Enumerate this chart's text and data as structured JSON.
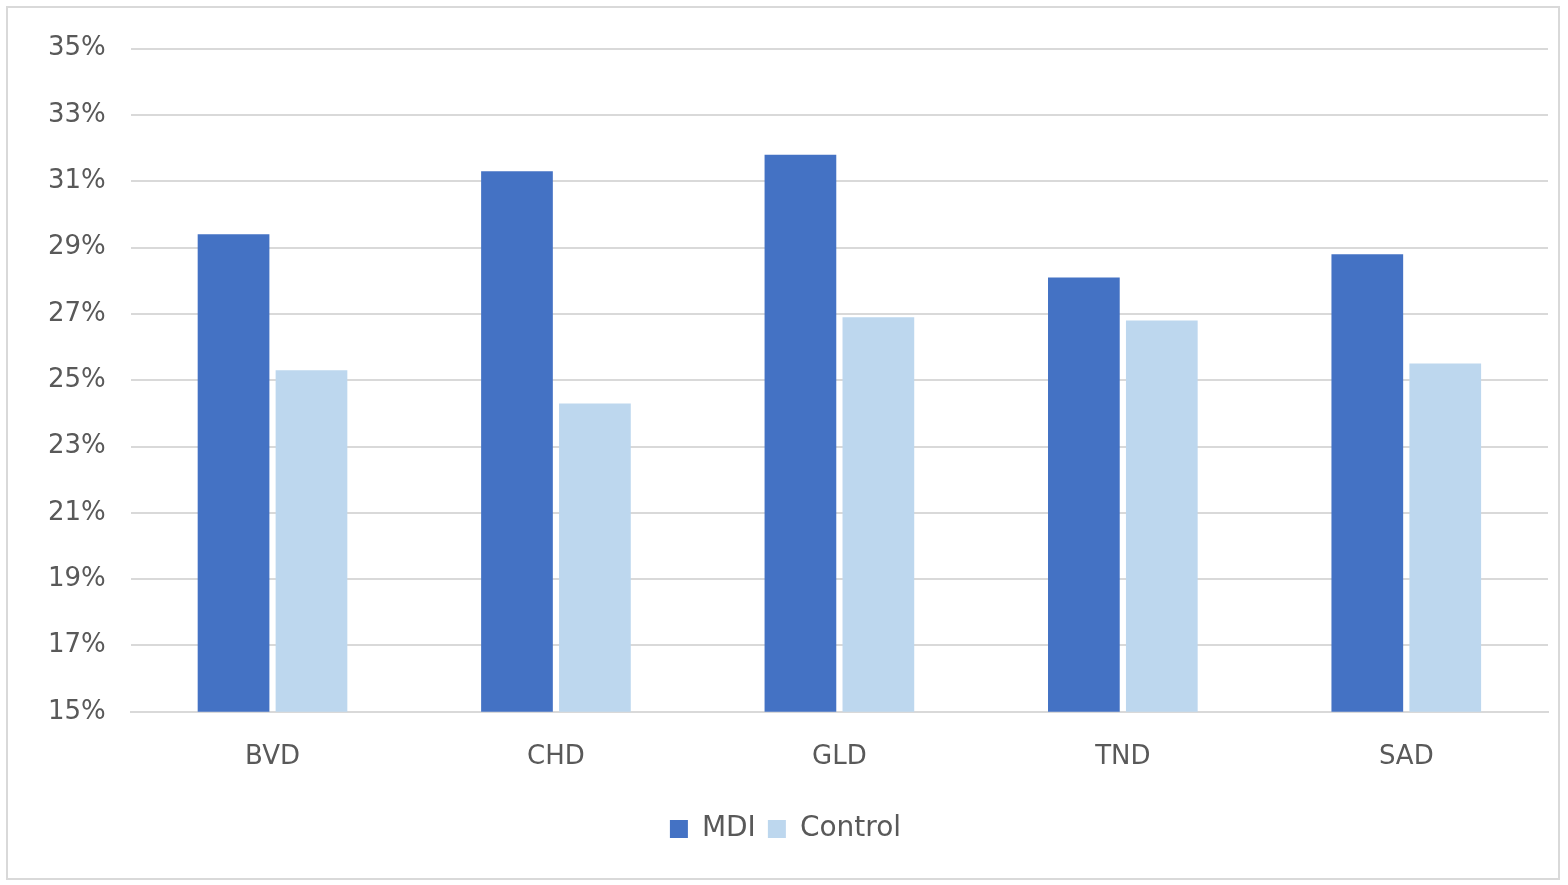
{
  "chart_data": {
    "type": "bar",
    "categories": [
      "BVD",
      "CHD",
      "GLD",
      "TND",
      "SAD"
    ],
    "series": [
      {
        "name": "MDI",
        "color": "#4472c4",
        "values": [
          29.4,
          31.3,
          31.8,
          28.1,
          28.8
        ]
      },
      {
        "name": "Control",
        "color": "#bdd7ee",
        "values": [
          25.3,
          24.3,
          26.9,
          26.8,
          25.5
        ]
      }
    ],
    "ylim": [
      15,
      35
    ],
    "yticks": [
      {
        "value": 15,
        "label": "15%"
      },
      {
        "value": 17,
        "label": "17%"
      },
      {
        "value": 19,
        "label": "19%"
      },
      {
        "value": 21,
        "label": "21%"
      },
      {
        "value": 23,
        "label": "23%"
      },
      {
        "value": 25,
        "label": "25%"
      },
      {
        "value": 27,
        "label": "27%"
      },
      {
        "value": 29,
        "label": "29%"
      },
      {
        "value": 31,
        "label": "31%"
      },
      {
        "value": 33,
        "label": "33%"
      },
      {
        "value": 35,
        "label": "35%"
      }
    ],
    "grid": "y",
    "legend": "bottom"
  }
}
